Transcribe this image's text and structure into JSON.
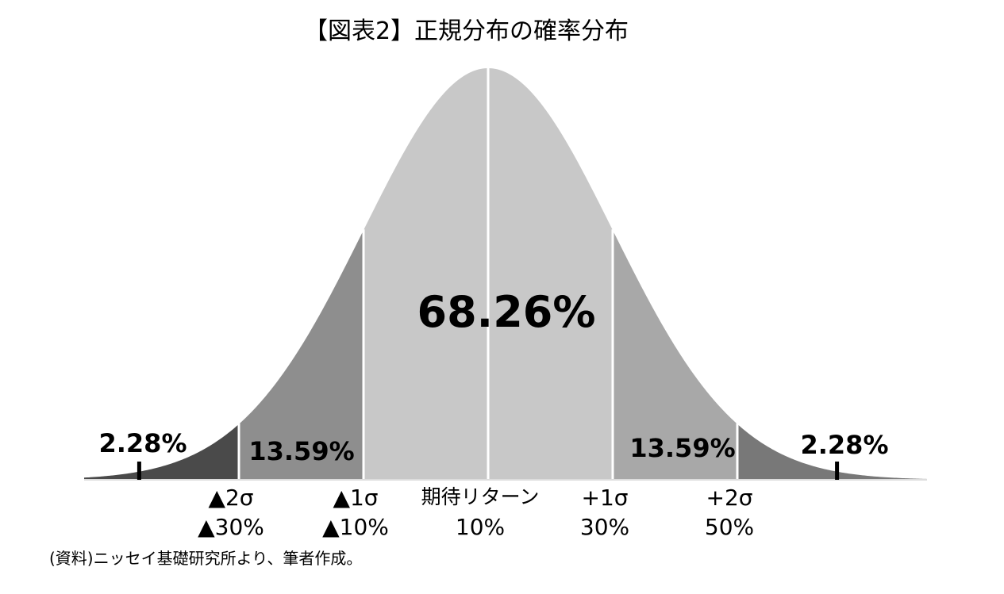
{
  "title": "【図表2】正規分布の確率分布",
  "chart_data": {
    "type": "area",
    "distribution": "normal",
    "regions": [
      {
        "name": "left_tail",
        "range": [
          "-inf",
          -2
        ],
        "percent_label": "2.28%",
        "color": "#4a4a4a"
      },
      {
        "name": "left_band",
        "range": [
          -2,
          -1
        ],
        "percent_label": "13.59%",
        "color": "#8e8e8e"
      },
      {
        "name": "center",
        "range": [
          -1,
          1
        ],
        "percent_label": "68.26%",
        "color": "#c8c8c8"
      },
      {
        "name": "right_band",
        "range": [
          1,
          2
        ],
        "percent_label": "13.59%",
        "color": "#a8a8a8"
      },
      {
        "name": "right_tail",
        "range": [
          2,
          "inf"
        ],
        "percent_label": "2.28%",
        "color": "#787878"
      }
    ],
    "center_divider": 0,
    "x_ticks": [
      {
        "sigma": -2,
        "label": "▲2σ",
        "value": "▲30%"
      },
      {
        "sigma": -1,
        "label": "▲1σ",
        "value": "▲10%"
      },
      {
        "sigma": 0,
        "label": "期待リターン",
        "value": "10%"
      },
      {
        "sigma": 1,
        "label": "+1σ",
        "value": "30%"
      },
      {
        "sigma": 2,
        "label": "+2σ",
        "value": "50%"
      }
    ],
    "tail_markers": [
      -2.8,
      2.8
    ]
  },
  "source": "(資料)ニッセイ基礎研究所より、筆者作成。"
}
